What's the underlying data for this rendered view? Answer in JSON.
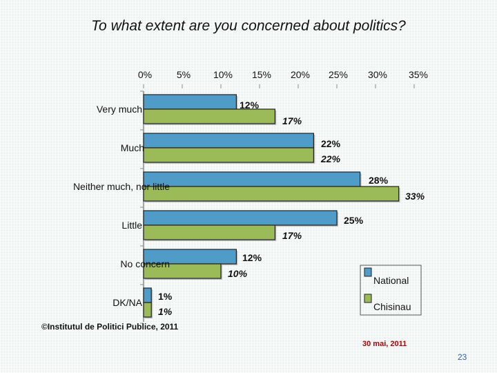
{
  "chart_data": {
    "type": "bar",
    "orientation": "horizontal",
    "title": "To what extent are you concerned about politics?",
    "xlim": [
      0,
      35
    ],
    "tick_values": [
      0,
      5,
      10,
      15,
      20,
      25,
      30,
      35
    ],
    "tick_labels": [
      "0%",
      "5%",
      "10%",
      "15%",
      "20%",
      "25%",
      "30%",
      "35%"
    ],
    "categories": [
      "Very much",
      "Much",
      "Neither much, nor little",
      "Little",
      "No concern",
      "DK/NA"
    ],
    "series": [
      {
        "name": "National",
        "color": "#4f9cc8",
        "values": [
          12,
          22,
          28,
          25,
          12,
          1
        ],
        "labels": [
          "12%",
          "22%",
          "28%",
          "25%",
          "12%",
          "1%"
        ]
      },
      {
        "name": "Chisinau",
        "color": "#9bbb59",
        "values": [
          17,
          22,
          33,
          17,
          10,
          1
        ],
        "labels": [
          "17%",
          "22%",
          "33%",
          "17%",
          "10%",
          "1%"
        ]
      }
    ],
    "legend": "bottom-right"
  },
  "footer": {
    "credit": "©Institutul de Politici Publice, 2011",
    "date": "30 mai, 2011",
    "page": "23"
  }
}
